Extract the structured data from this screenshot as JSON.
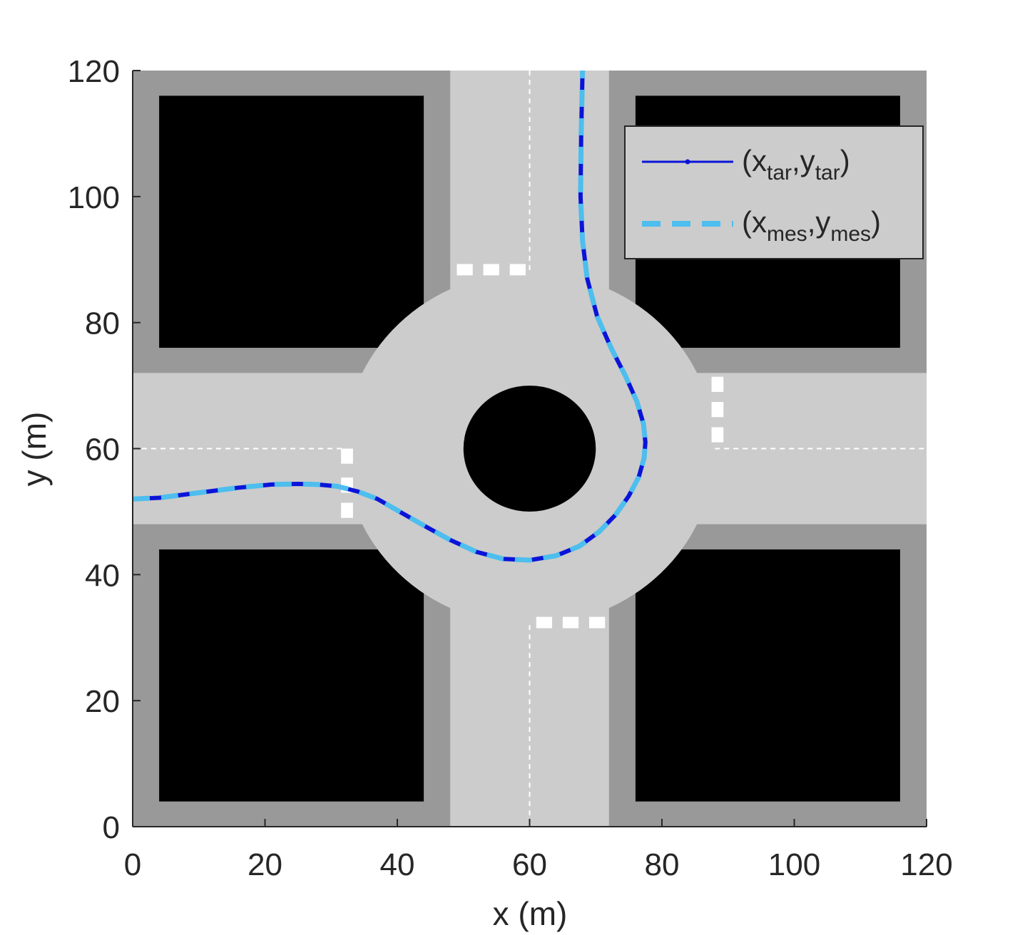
{
  "chart_data": {
    "type": "line",
    "xlabel": "x (m)",
    "ylabel": "y (m)",
    "xlim": [
      0,
      120
    ],
    "ylim": [
      0,
      120
    ],
    "xticks": [
      "0",
      "20",
      "40",
      "60",
      "80",
      "100",
      "120"
    ],
    "yticks": [
      "0",
      "20",
      "40",
      "60",
      "80",
      "100",
      "120"
    ],
    "legend_position": "top-right",
    "series": [
      {
        "name": "(x_tar,y_tar)",
        "legend": {
          "main": "(x",
          "sub1": "tar",
          "sep": ",y",
          "sub2": "tar",
          "close": ")"
        },
        "color": "#0a14d8",
        "style": "solid",
        "x": [
          0,
          4,
          10,
          16,
          21,
          25,
          28,
          31,
          34,
          37,
          40,
          44,
          48,
          52,
          56,
          60,
          64,
          67.5,
          70.5,
          73,
          75,
          76.5,
          77.3,
          77.5,
          77.2,
          76.2,
          74.5,
          72.3,
          70.2,
          68.7,
          68,
          67.7,
          67.8,
          68
        ],
        "y": [
          52,
          52.2,
          53,
          53.8,
          54.3,
          54.4,
          54.3,
          54,
          53.2,
          52,
          50.2,
          47.8,
          45.5,
          43.6,
          42.5,
          42.3,
          43,
          44.5,
          46.8,
          49.5,
          52.5,
          55.5,
          58.5,
          61,
          64,
          67.5,
          71.5,
          76,
          81,
          87,
          93,
          100,
          110,
          120
        ]
      },
      {
        "name": "(x_mes,y_mes)",
        "legend": {
          "main": "(x",
          "sub1": "mes",
          "sep": ",y",
          "sub2": "mes",
          "close": ")"
        },
        "color": "#4dbeee",
        "style": "dashed",
        "x": [
          0,
          4,
          10,
          16,
          21,
          25,
          28,
          31,
          34,
          37,
          40,
          44,
          48,
          52,
          56,
          60,
          64,
          67.5,
          70.5,
          73,
          75,
          76.5,
          77.3,
          77.5,
          77.2,
          76.2,
          74.5,
          72.3,
          70.2,
          68.7,
          68,
          67.7,
          67.8,
          68
        ],
        "y": [
          52,
          52.2,
          53,
          53.8,
          54.3,
          54.4,
          54.3,
          54,
          53.2,
          52,
          50.2,
          47.8,
          45.5,
          43.6,
          42.5,
          42.3,
          43,
          44.5,
          46.8,
          49.5,
          52.5,
          55.5,
          58.5,
          61,
          64,
          67.5,
          71.5,
          76,
          81,
          87,
          93,
          100,
          110,
          120
        ]
      }
    ],
    "background_scene": {
      "block_color": "#000000",
      "sidewalk_color": "#999999",
      "road_color": "#cccccc",
      "marking_color": "#ffffff",
      "buildings": [
        {
          "x": [
            4,
            44
          ],
          "y": [
            76,
            116
          ]
        },
        {
          "x": [
            76,
            116
          ],
          "y": [
            76,
            116
          ]
        },
        {
          "x": [
            4,
            44
          ],
          "y": [
            4,
            44
          ]
        },
        {
          "x": [
            76,
            116
          ],
          "y": [
            4,
            44
          ]
        }
      ],
      "sidewalk_blocks": [
        {
          "x": [
            0,
            48
          ],
          "y": [
            72,
            120
          ]
        },
        {
          "x": [
            72,
            120
          ],
          "y": [
            72,
            120
          ]
        },
        {
          "x": [
            0,
            48
          ],
          "y": [
            0,
            48
          ]
        },
        {
          "x": [
            72,
            120
          ],
          "y": [
            0,
            48
          ]
        }
      ],
      "roundabout": {
        "cx": 60,
        "cy": 60,
        "outer_r": 28,
        "island_r": 10
      }
    }
  }
}
